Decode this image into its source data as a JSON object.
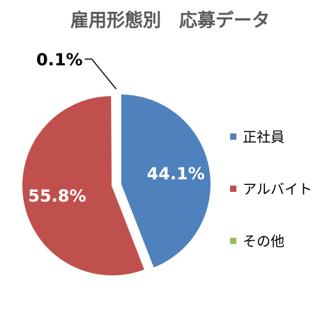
{
  "chart_data": {
    "type": "pie",
    "title": "雇用形態別　応募データ",
    "categories": [
      "正社員",
      "アルバイト",
      "その他"
    ],
    "values": [
      44.1,
      55.8,
      0.1
    ],
    "data_labels": [
      "44.1%",
      "55.8%",
      "0.1%"
    ],
    "colors": [
      "#4F81BD",
      "#C0504D",
      "#9BBB59"
    ],
    "legend_position": "right",
    "start_angle": "12 o'clock",
    "direction": "clockwise",
    "exploded": true
  }
}
